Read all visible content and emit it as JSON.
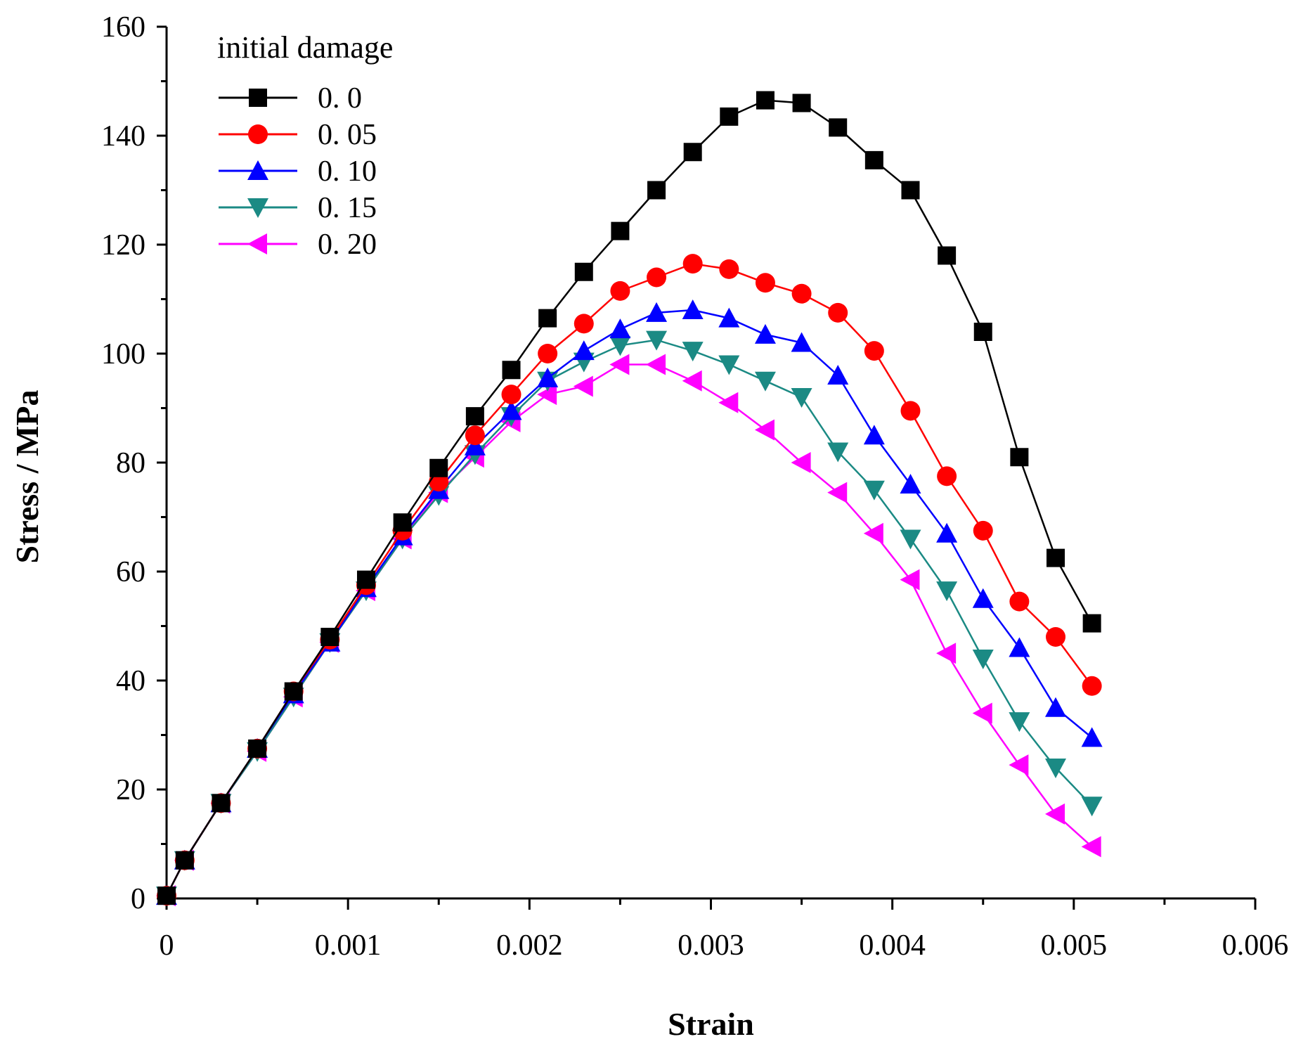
{
  "chart_data": {
    "type": "line",
    "xlabel": "Strain",
    "ylabel": "Stress / MPa",
    "xlim": [
      0,
      0.006
    ],
    "ylim": [
      0,
      160
    ],
    "x_ticks": [
      0,
      0.001,
      0.002,
      0.003,
      0.004,
      0.005,
      0.006
    ],
    "x_tick_labels": [
      "0",
      "0.001",
      "0.002",
      "0.003",
      "0.004",
      "0.005",
      "0.006"
    ],
    "y_ticks": [
      0,
      20,
      40,
      60,
      80,
      100,
      120,
      140,
      160
    ],
    "y_tick_labels": [
      "0",
      "20",
      "40",
      "60",
      "80",
      "100",
      "120",
      "140",
      "160"
    ],
    "grid": false,
    "legend": {
      "title": "initial damage",
      "position": "top-left"
    },
    "x": [
      0,
      0.0001,
      0.0003,
      0.0005,
      0.0007,
      0.0009,
      0.0011,
      0.0013,
      0.0015,
      0.0017,
      0.0019,
      0.0021,
      0.0023,
      0.0025,
      0.0027,
      0.0029,
      0.0031,
      0.0033,
      0.0035,
      0.0037,
      0.0039,
      0.0041,
      0.0043,
      0.0045,
      0.0047,
      0.0049,
      0.0051
    ],
    "series": [
      {
        "name": "0. 0",
        "color": "#000000",
        "marker": "square",
        "values": [
          0.5,
          7,
          17.5,
          27.5,
          38,
          48,
          58.5,
          69,
          79,
          88.5,
          97,
          106.5,
          115,
          122.5,
          130,
          137,
          143.5,
          146.5,
          146,
          141.5,
          135.5,
          130,
          118,
          104,
          81,
          62.5,
          50.5
        ]
      },
      {
        "name": "0. 05",
        "color": "#ff0000",
        "marker": "circle",
        "values": [
          0.5,
          7,
          17.5,
          27.5,
          38,
          47.5,
          57.5,
          67.5,
          76.5,
          85,
          92.5,
          100,
          105.5,
          111.5,
          114,
          116.5,
          115.5,
          113,
          111,
          107.5,
          100.5,
          89.5,
          77.5,
          67.5,
          54.5,
          48,
          39
        ]
      },
      {
        "name": "0. 10",
        "color": "#0000ff",
        "marker": "triangle-up",
        "values": [
          0.5,
          7,
          17.5,
          27.5,
          37.5,
          47,
          57,
          66.5,
          75,
          83,
          89.5,
          95.5,
          100.5,
          104.5,
          107.5,
          108,
          106.5,
          103.5,
          102,
          96,
          85,
          76,
          67,
          55,
          46,
          35,
          29.5
        ]
      },
      {
        "name": "0. 15",
        "color": "#1b8a84",
        "marker": "triangle-down",
        "values": [
          0.5,
          7,
          17.5,
          27,
          37,
          47,
          56.5,
          66,
          74,
          81.5,
          88.5,
          95,
          98.5,
          101.5,
          102.5,
          100.5,
          98,
          95,
          92,
          82,
          75,
          66,
          56.5,
          44,
          32.5,
          24,
          17
        ]
      },
      {
        "name": "0. 20",
        "color": "#ff00ff",
        "marker": "triangle-left",
        "values": [
          0.5,
          7,
          17.5,
          27,
          37,
          47,
          56.5,
          66,
          74.5,
          81,
          87.5,
          92.5,
          94,
          98,
          98,
          95,
          91,
          86,
          80,
          74.5,
          67,
          58.5,
          45,
          34,
          24.5,
          15.5,
          9.5
        ]
      }
    ]
  }
}
